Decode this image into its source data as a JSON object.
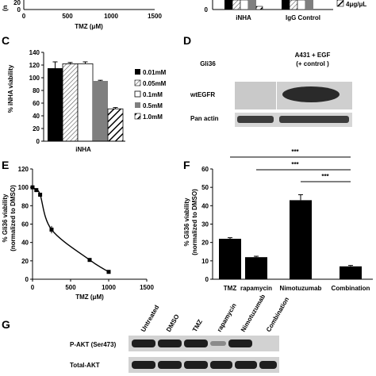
{
  "panels": {
    "top_left": {
      "ytick_visible": "20",
      "ytick_zero": "0",
      "ylabel_partial": "(n",
      "xticks": [
        "0",
        "500",
        "1000",
        "1500"
      ],
      "xlabel": "TMZ (μM)"
    },
    "top_right": {
      "categories": [
        "iNHA",
        "IgG Control"
      ],
      "ytick_zero": "0",
      "legend_partial": "4μg/μL"
    },
    "C": {
      "letter": "C",
      "ylabel": "% iNHA viability",
      "yticks": [
        "0",
        "20",
        "40",
        "60",
        "80",
        "100",
        "120",
        "140"
      ],
      "xlabel": "iNHA",
      "legend": [
        "0.01mM",
        "0.05mM",
        "0.1mM",
        "0.5mM",
        "1.0mM"
      ],
      "colors": [
        "#000000",
        "#e8e8e8",
        "#ffffff",
        "#7f7f7f",
        "#ffffff"
      ]
    },
    "D": {
      "letter": "D",
      "col1": "Gli36",
      "col2": "A431 + EGF",
      "col2b": "(+ control )",
      "row1": "wtEGFR",
      "row2": "Pan actin"
    },
    "E": {
      "letter": "E",
      "ylabel1": "% Gli36 viability",
      "ylabel2": "(normalized to DMSO)",
      "yticks": [
        "0",
        "20",
        "40",
        "60",
        "80",
        "100",
        "120"
      ],
      "xticks": [
        "0",
        "500",
        "1000",
        "1500"
      ],
      "xlabel": "TMZ (μM)"
    },
    "F": {
      "letter": "F",
      "ylabel1": "% Gli36 viability",
      "ylabel2": "(normalized to DMSO)",
      "yticks": [
        "0",
        "10",
        "20",
        "30",
        "40",
        "50",
        "60"
      ],
      "sig": [
        "***",
        "***",
        "***"
      ]
    },
    "G": {
      "letter": "G",
      "lanes": [
        "Untreated",
        "DMSO",
        "TMZ",
        "rapamycin",
        "Nimotuzumab",
        "Combination"
      ],
      "row1": "P-AKT (Ser473)",
      "row2": "Total-AKT"
    }
  },
  "chart_data": [
    {
      "id": "C",
      "type": "bar",
      "title": "",
      "categories": [
        "iNHA"
      ],
      "series": [
        {
          "name": "0.01mM",
          "values": [
            115
          ],
          "error": [
            10
          ]
        },
        {
          "name": "0.05mM",
          "values": [
            122
          ],
          "error": [
            2
          ]
        },
        {
          "name": "0.1mM",
          "values": [
            122
          ],
          "error": [
            3
          ]
        },
        {
          "name": "0.5mM",
          "values": [
            95
          ],
          "error": [
            1
          ]
        },
        {
          "name": "1.0mM",
          "values": [
            51
          ],
          "error": [
            2
          ]
        }
      ],
      "xlabel": "iNHA",
      "ylabel": "% iNHA viability",
      "ylim": [
        0,
        140
      ],
      "legend": "right"
    },
    {
      "id": "E",
      "type": "line",
      "title": "",
      "x": [
        0,
        50,
        100,
        250,
        750,
        1000
      ],
      "y": [
        100,
        97,
        92,
        54,
        21,
        8
      ],
      "xlabel": "TMZ (μM)",
      "ylabel": "% Gli36 viability (normalized to DMSO)",
      "xlim": [
        0,
        1500
      ],
      "ylim": [
        0,
        120
      ]
    },
    {
      "id": "F",
      "type": "bar",
      "title": "",
      "categories": [
        "TMZ",
        "rapamycin",
        "Nimotuzumab",
        "Combination"
      ],
      "values": [
        22,
        12,
        43,
        7
      ],
      "error": [
        0.6,
        0.5,
        3,
        0.5
      ],
      "xlabel": "",
      "ylabel": "% Gli36 viability (normalized to DMSO)",
      "ylim": [
        0,
        60
      ]
    }
  ]
}
